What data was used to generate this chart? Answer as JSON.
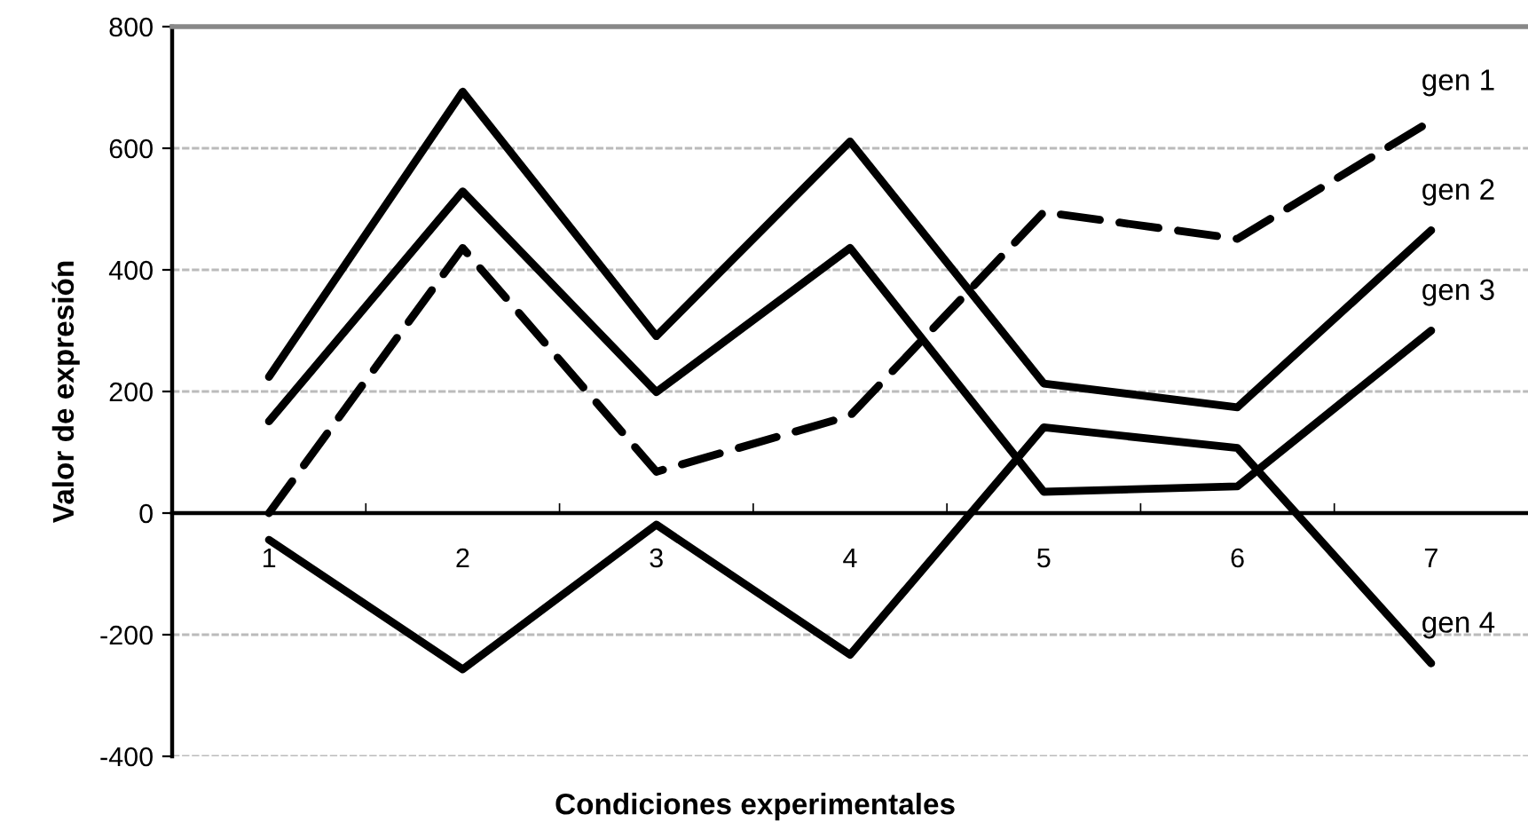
{
  "chart_data": {
    "type": "line",
    "xlabel": "Condiciones experimentales",
    "ylabel": "Valor de expresión",
    "categories": [
      "1",
      "2",
      "3",
      "4",
      "5",
      "6",
      "7"
    ],
    "series": [
      {
        "color": "#000000",
        "line_style": "dashed",
        "values": [
          0,
          436,
          68,
          160,
          495,
          451,
          645
        ]
      },
      {
        "color": "#000000",
        "line_style": "solid",
        "values": [
          224,
          693,
          291,
          611,
          213,
          174,
          465
        ]
      },
      {
        "color": "#000000",
        "line_style": "solid",
        "values": [
          151,
          529,
          199,
          436,
          35,
          44,
          300
        ]
      },
      {
        "color": "#000000",
        "line_style": "solid",
        "values": [
          -44,
          -257,
          -19,
          -233,
          141,
          107,
          -247
        ]
      }
    ],
    "annotations": [
      {
        "text": "gen 1",
        "x": "7",
        "y": 645
      },
      {
        "text": "gen 2",
        "x": "7",
        "y": 465
      },
      {
        "text": "gen 3",
        "x": "7",
        "y": 300
      },
      {
        "text": "gen 4",
        "x": "7",
        "y": -247
      }
    ],
    "ylim": [
      -400,
      800
    ],
    "yticks": [
      -400,
      -200,
      0,
      200,
      400,
      600,
      800
    ],
    "grid": "y",
    "marker": "none"
  }
}
